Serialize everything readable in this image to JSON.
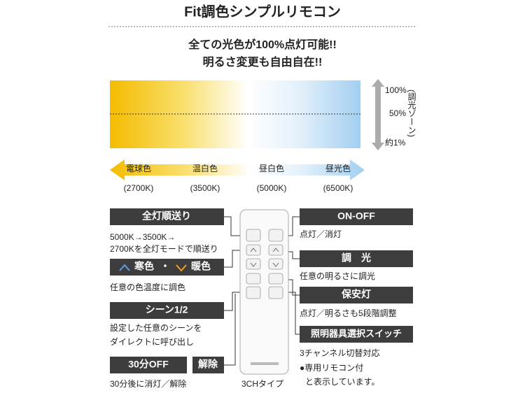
{
  "header": {
    "title": "Fit調色シンプルリモコン",
    "lines": [
      "全ての光色が100%点灯可能!!",
      "明るさ変更も自由自在!!"
    ]
  },
  "dimming": {
    "levels": [
      "100%",
      "50%",
      "約1%"
    ],
    "zone_label": "(調光ゾーン)"
  },
  "color_temps": [
    {
      "name": "電球色",
      "kelvin": "(2700K)"
    },
    {
      "name": "温白色",
      "kelvin": "(3500K)"
    },
    {
      "name": "昼白色",
      "kelvin": "(5000K)"
    },
    {
      "name": "昼光色",
      "kelvin": "(6500K)"
    }
  ],
  "left": {
    "sequence": {
      "label": "全灯順送り",
      "desc": [
        "5000K→3500K→",
        "2700Kを全灯モードで順送り"
      ]
    },
    "tone": {
      "cool": "寒色",
      "separator": "・",
      "warm": "暖色",
      "desc": [
        "任意の色温度に調色"
      ]
    },
    "scene": {
      "label": "シーン1/2",
      "desc": [
        "設定した任意のシーンを",
        "ダイレクトに呼び出し"
      ]
    },
    "timer": {
      "label": "30分OFF",
      "cancel": "解除",
      "desc": [
        "30分後に消灯／解除"
      ]
    }
  },
  "right": {
    "onoff": {
      "label": "ON-OFF",
      "desc": [
        "点灯／消灯"
      ]
    },
    "dim": {
      "label": "調　光",
      "desc": [
        "任意の明るさに調光"
      ]
    },
    "night": {
      "label": "保安灯",
      "desc": [
        "点灯／明るさも5段階調整"
      ]
    },
    "select": {
      "label": "照明器具選択スイッチ",
      "desc": [
        "3チャンネル切替対応"
      ]
    },
    "note": [
      "●専用リモコン付",
      "と表示しています。"
    ]
  },
  "remote_caption": "3CHタイプ"
}
